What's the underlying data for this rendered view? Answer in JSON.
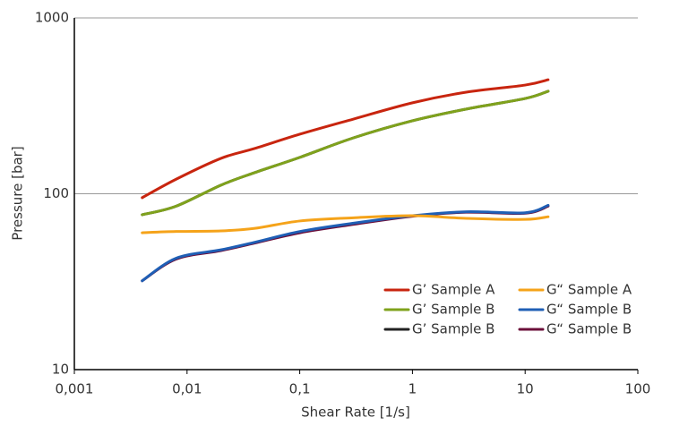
{
  "chart_data": {
    "type": "line",
    "xlabel": "Shear Rate [1/s]",
    "ylabel": "Pressure [bar]",
    "x": [
      0.004,
      0.008,
      0.02,
      0.04,
      0.1,
      0.3,
      1,
      3,
      10,
      16
    ],
    "xscale": "log",
    "yscale": "log",
    "xlim": [
      0.001,
      100
    ],
    "ylim": [
      10,
      1000
    ],
    "xticks": [
      {
        "value": 0.001,
        "label": "0,001"
      },
      {
        "value": 0.01,
        "label": "0,01"
      },
      {
        "value": 0.1,
        "label": "0,1"
      },
      1,
      10,
      100
    ],
    "yticks": [
      10,
      100,
      1000
    ],
    "grid": "y",
    "legend": "lower right",
    "series": [
      {
        "name": "G’ Sample A",
        "color": "#c8250f",
        "values": [
          95,
          121,
          159,
          181,
          218,
          266,
          329,
          378,
          415,
          445
        ]
      },
      {
        "name": "G’ Sample B",
        "color": "#7fa21c",
        "values": [
          76,
          85,
          112,
          132,
          161,
          208,
          260,
          303,
          348,
          383
        ]
      },
      {
        "name": "G’ Sample B",
        "color": "#222222",
        "values": [
          76,
          85,
          112,
          132,
          161,
          208,
          260,
          303,
          348,
          383
        ]
      },
      {
        "name": "G“ Sample A",
        "color": "#f5a31a",
        "values": [
          60,
          61,
          61.5,
          63.6,
          70,
          73,
          75,
          72.5,
          71.5,
          74
        ]
      },
      {
        "name": "G“ Sample B",
        "color": "#1f5fb5",
        "values": [
          32,
          43,
          48,
          53,
          61,
          68,
          75,
          79,
          78,
          86
        ]
      },
      {
        "name": "G“ Sample B",
        "color": "#6b0f3a",
        "values": [
          32,
          42.5,
          47.5,
          52.5,
          60,
          67,
          74.5,
          78.5,
          77.5,
          85
        ]
      }
    ]
  }
}
